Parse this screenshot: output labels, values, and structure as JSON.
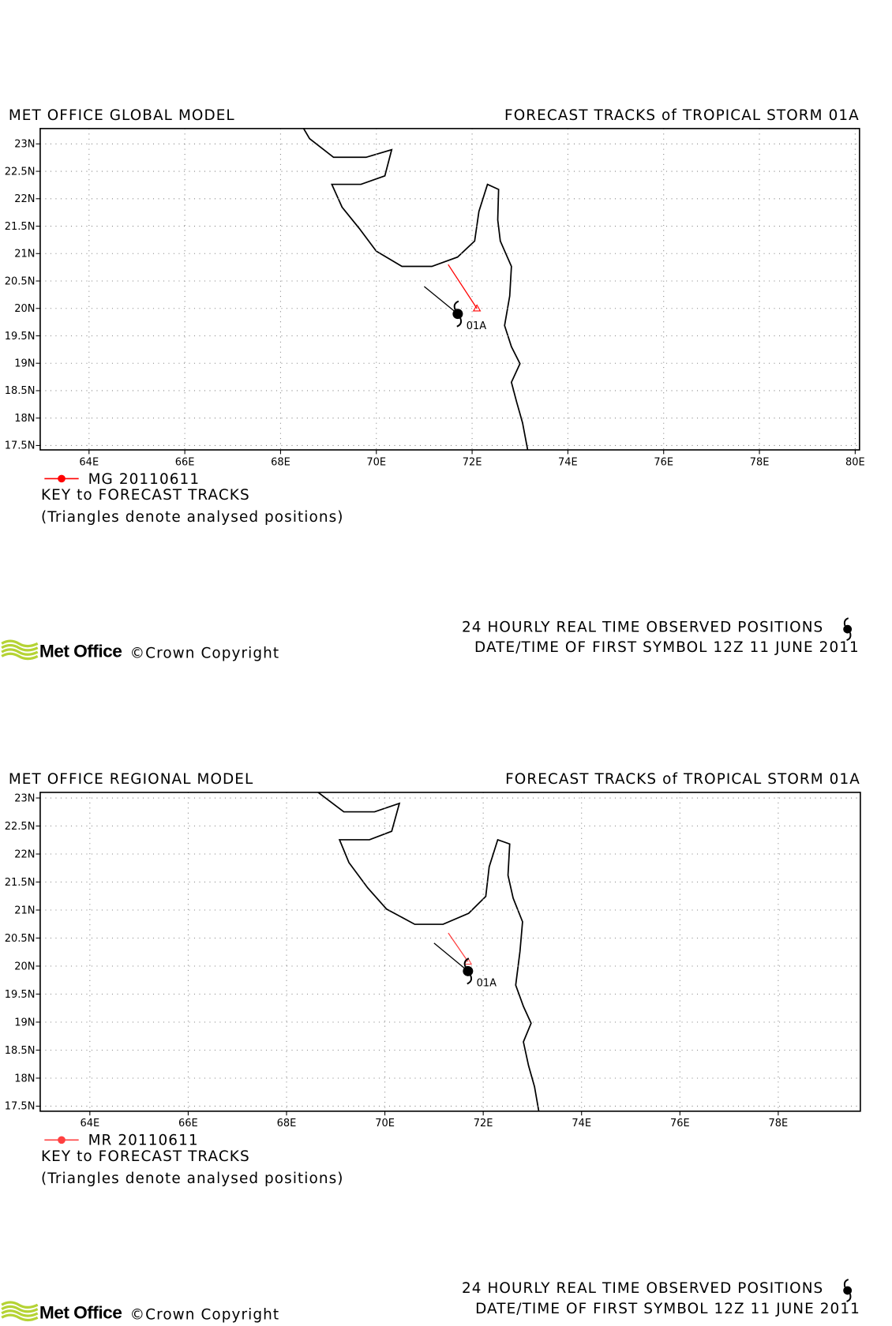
{
  "panels": [
    {
      "model_title": "MET OFFICE GLOBAL MODEL",
      "title": "FORECAST TRACKS of TROPICAL STORM 01A",
      "xlim": [
        62.98,
        80.09
      ],
      "ylim": [
        17.42,
        23.28
      ],
      "lon_ticks": [
        {
          "value": 64,
          "label": "64E"
        },
        {
          "value": 66,
          "label": "66E"
        },
        {
          "value": 68,
          "label": "68E"
        },
        {
          "value": 70,
          "label": "70E"
        },
        {
          "value": 72,
          "label": "72E"
        },
        {
          "value": 74,
          "label": "74E"
        },
        {
          "value": 76,
          "label": "76E"
        },
        {
          "value": 78,
          "label": "78E"
        },
        {
          "value": 80,
          "label": "80E"
        }
      ],
      "lat_ticks": [
        {
          "value": 23,
          "label": "23N"
        },
        {
          "value": 22.5,
          "label": "22.5N"
        },
        {
          "value": 22,
          "label": "22N"
        },
        {
          "value": 21.5,
          "label": "21.5N"
        },
        {
          "value": 21,
          "label": "21N"
        },
        {
          "value": 20.5,
          "label": "20.5N"
        },
        {
          "value": 20,
          "label": "20N"
        },
        {
          "value": 19.5,
          "label": "19.5N"
        },
        {
          "value": 19,
          "label": "19N"
        },
        {
          "value": 18.5,
          "label": "18.5N"
        },
        {
          "value": 18,
          "label": "18N"
        },
        {
          "value": 17.5,
          "label": "17.5N"
        }
      ],
      "storm_label": "01A",
      "observed_track": {
        "color": "#000000",
        "lon": [
          71.0,
          71.7
        ],
        "lat": [
          20.4,
          19.9
        ]
      },
      "forecast_track": {
        "name": "MG 20110611",
        "color": "#ff0000",
        "lon": [
          71.5,
          72.1
        ],
        "lat": [
          20.8,
          20.0
        ]
      },
      "key_title": "KEY to FORECAST TRACKS",
      "key_note": "(Triangles denote analysed positions)",
      "footer_line1": "24 HOURLY REAL TIME OBSERVED POSITIONS",
      "footer_line2": "DATE/TIME OF FIRST SYMBOL 12Z 11 JUNE 2011",
      "logo": "Met Office",
      "copyright": "©Crown Copyright"
    },
    {
      "model_title": "MET OFFICE REGIONAL MODEL",
      "title": "FORECAST TRACKS of TROPICAL STORM 01A",
      "xlim": [
        62.99,
        79.67
      ],
      "ylim": [
        17.41,
        23.1
      ],
      "lon_ticks": [
        {
          "value": 64,
          "label": "64E"
        },
        {
          "value": 66,
          "label": "66E"
        },
        {
          "value": 68,
          "label": "68E"
        },
        {
          "value": 70,
          "label": "70E"
        },
        {
          "value": 72,
          "label": "72E"
        },
        {
          "value": 74,
          "label": "74E"
        },
        {
          "value": 76,
          "label": "76E"
        },
        {
          "value": 78,
          "label": "78E"
        }
      ],
      "lat_ticks": [
        {
          "value": 23,
          "label": "23N"
        },
        {
          "value": 22.5,
          "label": "22.5N"
        },
        {
          "value": 22,
          "label": "22N"
        },
        {
          "value": 21.5,
          "label": "21.5N"
        },
        {
          "value": 21,
          "label": "21N"
        },
        {
          "value": 20.5,
          "label": "20.5N"
        },
        {
          "value": 20,
          "label": "20N"
        },
        {
          "value": 19.5,
          "label": "19.5N"
        },
        {
          "value": 19,
          "label": "19N"
        },
        {
          "value": 18.5,
          "label": "18.5N"
        },
        {
          "value": 18,
          "label": "18N"
        },
        {
          "value": 17.5,
          "label": "17.5N"
        }
      ],
      "storm_label": "01A",
      "observed_track": {
        "color": "#000000",
        "lon": [
          71.0,
          71.69
        ],
        "lat": [
          20.41,
          19.91
        ]
      },
      "forecast_track": {
        "name": "MR 20110611",
        "color": "#ff4040",
        "lon": [
          71.29,
          71.69
        ],
        "lat": [
          20.59,
          20.08
        ]
      },
      "key_title": "KEY to FORECAST TRACKS",
      "key_note": "(Triangles denote analysed positions)",
      "footer_line1": "24 HOURLY REAL TIME OBSERVED POSITIONS",
      "footer_line2": "DATE/TIME OF FIRST SYMBOL 12Z 11 JUNE 2011",
      "logo": "Met Office",
      "copyright": "©Crown Copyright"
    }
  ]
}
